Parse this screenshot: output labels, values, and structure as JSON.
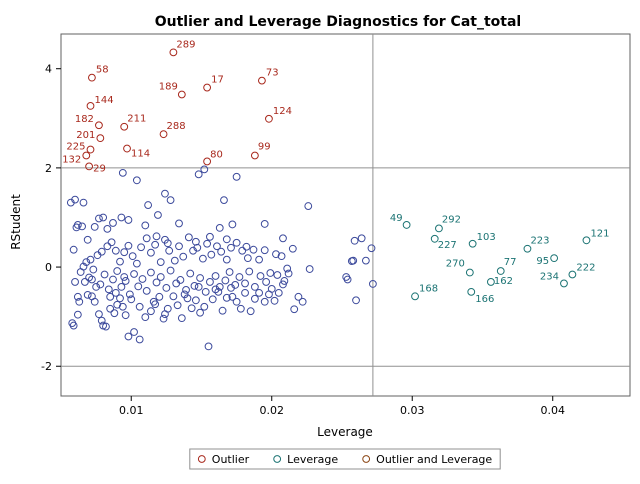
{
  "chart_data": {
    "type": "scatter",
    "title": "Outlier and Leverage Diagnostics for Cat_total",
    "xlabel": "Leverage",
    "ylabel": "RStudent",
    "xlim": [
      0.005,
      0.0455
    ],
    "ylim": [
      -2.6,
      4.7
    ],
    "x_ticks": [
      0.01,
      0.02,
      0.03,
      0.04
    ],
    "x_tick_labels": [
      "0.01",
      "0.02",
      "0.03",
      "0.04"
    ],
    "y_ticks": [
      -2,
      0,
      2,
      4
    ],
    "y_tick_labels": [
      "-2",
      "0",
      "2",
      "4"
    ],
    "reference_lines": {
      "x": 0.0272,
      "y": [
        2,
        -2
      ]
    },
    "colors": {
      "normal": "#3c4a9c",
      "outlier": "#a8281c",
      "leverage": "#1b7373",
      "outlier_and_leverage": "#8b4513",
      "refline": "#909090",
      "frame": "#606060"
    },
    "legend": {
      "position": "bottom",
      "entries": [
        {
          "label": "Outlier",
          "color": "#a8281c"
        },
        {
          "label": "Leverage",
          "color": "#1b7373"
        },
        {
          "label": "Outlier and Leverage",
          "color": "#8b4513"
        }
      ]
    },
    "outliers": [
      {
        "id": "289",
        "x": 0.013,
        "y": 4.33
      },
      {
        "id": "58",
        "x": 0.0072,
        "y": 3.82
      },
      {
        "id": "73",
        "x": 0.0193,
        "y": 3.76
      },
      {
        "id": "17",
        "x": 0.0154,
        "y": 3.62
      },
      {
        "id": "189",
        "x": 0.0136,
        "y": 3.48
      },
      {
        "id": "144",
        "x": 0.0071,
        "y": 3.25
      },
      {
        "id": "124",
        "x": 0.0198,
        "y": 2.99
      },
      {
        "id": "182",
        "x": 0.0077,
        "y": 2.86
      },
      {
        "id": "211",
        "x": 0.0095,
        "y": 2.83
      },
      {
        "id": "288",
        "x": 0.0123,
        "y": 2.68
      },
      {
        "id": "201",
        "x": 0.0078,
        "y": 2.6
      },
      {
        "id": "225",
        "x": 0.0071,
        "y": 2.37
      },
      {
        "id": "114",
        "x": 0.0097,
        "y": 2.39
      },
      {
        "id": "80",
        "x": 0.0154,
        "y": 2.13
      },
      {
        "id": "99",
        "x": 0.0188,
        "y": 2.25
      },
      {
        "id": "132",
        "x": 0.0068,
        "y": 2.25
      },
      {
        "id": "29",
        "x": 0.007,
        "y": 2.03
      }
    ],
    "leverage_points": [
      {
        "id": "49",
        "x": 0.0296,
        "y": 0.85
      },
      {
        "id": "292",
        "x": 0.0319,
        "y": 0.78
      },
      {
        "id": "227",
        "x": 0.0316,
        "y": 0.57
      },
      {
        "id": "103",
        "x": 0.0343,
        "y": 0.47
      },
      {
        "id": "223",
        "x": 0.0382,
        "y": 0.37
      },
      {
        "id": "121",
        "x": 0.0424,
        "y": 0.54
      },
      {
        "id": "270",
        "x": 0.0341,
        "y": -0.11
      },
      {
        "id": "77",
        "x": 0.0363,
        "y": -0.08
      },
      {
        "id": "95",
        "x": 0.0401,
        "y": 0.18
      },
      {
        "id": "222",
        "x": 0.0414,
        "y": -0.15
      },
      {
        "id": "234",
        "x": 0.0408,
        "y": -0.33
      },
      {
        "id": "162",
        "x": 0.0356,
        "y": -0.3
      },
      {
        "id": "168",
        "x": 0.0302,
        "y": -0.59
      },
      {
        "id": "166",
        "x": 0.0342,
        "y": -0.5
      }
    ],
    "normal_points": [
      [
        0.0066,
        1.3
      ],
      [
        0.0069,
        0.55
      ],
      [
        0.0057,
        1.3
      ],
      [
        0.006,
        1.36
      ],
      [
        0.0062,
        0.85
      ],
      [
        0.0059,
        0.35
      ],
      [
        0.0061,
        0.8
      ],
      [
        0.0065,
        0.82
      ],
      [
        0.0074,
        0.81
      ],
      [
        0.0077,
        0.98
      ],
      [
        0.008,
        1.0
      ],
      [
        0.0083,
        0.77
      ],
      [
        0.0087,
        0.89
      ],
      [
        0.0093,
        1.0
      ],
      [
        0.0094,
        1.9
      ],
      [
        0.0104,
        1.75
      ],
      [
        0.0112,
        1.25
      ],
      [
        0.0119,
        1.05
      ],
      [
        0.0124,
        1.48
      ],
      [
        0.0128,
        1.35
      ],
      [
        0.0148,
        1.87
      ],
      [
        0.0152,
        1.97
      ],
      [
        0.0166,
        1.35
      ],
      [
        0.0175,
        1.82
      ],
      [
        0.0163,
        0.79
      ],
      [
        0.0172,
        0.86
      ],
      [
        0.0195,
        0.87
      ],
      [
        0.0208,
        0.58
      ],
      [
        0.0226,
        1.23
      ],
      [
        0.0259,
        0.53
      ],
      [
        0.0264,
        0.58
      ],
      [
        0.0258,
        0.13
      ],
      [
        0.0267,
        0.13
      ],
      [
        0.0271,
        0.38
      ],
      [
        0.0254,
        -0.25
      ],
      [
        0.026,
        -0.67
      ],
      [
        0.0272,
        -0.34
      ],
      [
        0.006,
        -0.3
      ],
      [
        0.0062,
        -0.6
      ],
      [
        0.0063,
        -0.7
      ],
      [
        0.0058,
        -1.13
      ],
      [
        0.0059,
        -1.18
      ],
      [
        0.0066,
        0.01
      ],
      [
        0.0069,
        -0.56
      ],
      [
        0.0072,
        -0.59
      ],
      [
        0.0074,
        -0.7
      ],
      [
        0.0077,
        -0.95
      ],
      [
        0.0079,
        -1.08
      ],
      [
        0.008,
        -1.18
      ],
      [
        0.0082,
        -1.2
      ],
      [
        0.0085,
        -0.84
      ],
      [
        0.0088,
        -0.93
      ],
      [
        0.009,
        -0.76
      ],
      [
        0.0092,
        -0.63
      ],
      [
        0.0094,
        -0.8
      ],
      [
        0.0096,
        -0.97
      ],
      [
        0.0098,
        -1.4
      ],
      [
        0.0102,
        -1.31
      ],
      [
        0.0106,
        -1.46
      ],
      [
        0.011,
        -1.01
      ],
      [
        0.0114,
        -0.89
      ],
      [
        0.0117,
        -0.75
      ],
      [
        0.012,
        -0.6
      ],
      [
        0.0123,
        -1.04
      ],
      [
        0.0126,
        -0.84
      ],
      [
        0.013,
        -0.59
      ],
      [
        0.0133,
        -0.77
      ],
      [
        0.0136,
        -1.03
      ],
      [
        0.014,
        -0.63
      ],
      [
        0.0143,
        -0.83
      ],
      [
        0.0146,
        -0.67
      ],
      [
        0.0149,
        -0.92
      ],
      [
        0.0152,
        -0.8
      ],
      [
        0.0155,
        -1.6
      ],
      [
        0.0158,
        -0.65
      ],
      [
        0.0162,
        -0.5
      ],
      [
        0.0165,
        -0.88
      ],
      [
        0.0168,
        -0.62
      ],
      [
        0.0171,
        -0.42
      ],
      [
        0.0175,
        -0.7
      ],
      [
        0.0178,
        -0.84
      ],
      [
        0.0181,
        -0.52
      ],
      [
        0.0185,
        -0.89
      ],
      [
        0.0188,
        -0.64
      ],
      [
        0.0191,
        -0.52
      ],
      [
        0.0195,
        -0.7
      ],
      [
        0.0198,
        -0.55
      ],
      [
        0.0202,
        -0.68
      ],
      [
        0.0205,
        -0.52
      ],
      [
        0.0209,
        -0.28
      ],
      [
        0.0212,
        -0.13
      ],
      [
        0.0216,
        -0.85
      ],
      [
        0.0219,
        -0.6
      ],
      [
        0.0222,
        -0.7
      ],
      [
        0.0227,
        -0.04
      ],
      [
        0.0253,
        -0.2
      ],
      [
        0.0257,
        0.12
      ],
      [
        0.0062,
        -0.96
      ],
      [
        0.007,
        -0.21
      ],
      [
        0.0073,
        -0.05
      ],
      [
        0.0076,
        0.24
      ],
      [
        0.0079,
        0.31
      ],
      [
        0.0083,
        0.42
      ],
      [
        0.0086,
        0.5
      ],
      [
        0.0089,
        0.33
      ],
      [
        0.0092,
        0.11
      ],
      [
        0.0095,
        0.3
      ],
      [
        0.0098,
        0.43
      ],
      [
        0.0101,
        0.22
      ],
      [
        0.0104,
        0.07
      ],
      [
        0.0107,
        0.4
      ],
      [
        0.0111,
        0.58
      ],
      [
        0.0114,
        0.29
      ],
      [
        0.0117,
        0.45
      ],
      [
        0.0121,
        0.1
      ],
      [
        0.0124,
        0.55
      ],
      [
        0.0127,
        0.33
      ],
      [
        0.0131,
        0.13
      ],
      [
        0.0134,
        0.42
      ],
      [
        0.0137,
        0.21
      ],
      [
        0.0141,
        0.6
      ],
      [
        0.0144,
        0.33
      ],
      [
        0.0147,
        0.39
      ],
      [
        0.0151,
        0.17
      ],
      [
        0.0154,
        0.47
      ],
      [
        0.0157,
        0.25
      ],
      [
        0.0161,
        0.42
      ],
      [
        0.0164,
        0.31
      ],
      [
        0.0168,
        0.15
      ],
      [
        0.0171,
        0.39
      ],
      [
        0.0175,
        0.49
      ],
      [
        0.0179,
        0.33
      ],
      [
        0.0183,
        0.18
      ],
      [
        0.0187,
        0.35
      ],
      [
        0.0191,
        0.15
      ],
      [
        0.0195,
        0.34
      ],
      [
        0.0199,
        -0.12
      ],
      [
        0.0203,
        0.26
      ],
      [
        0.0207,
        0.22
      ],
      [
        0.0211,
        -0.03
      ],
      [
        0.0215,
        0.37
      ],
      [
        0.0071,
        0.15
      ],
      [
        0.0078,
        -0.35
      ],
      [
        0.0081,
        -0.15
      ],
      [
        0.0084,
        -0.45
      ],
      [
        0.0087,
        -0.25
      ],
      [
        0.009,
        -0.08
      ],
      [
        0.0093,
        -0.4
      ],
      [
        0.0096,
        -0.28
      ],
      [
        0.0099,
        -0.55
      ],
      [
        0.0102,
        -0.14
      ],
      [
        0.0105,
        -0.39
      ],
      [
        0.0108,
        -0.24
      ],
      [
        0.0111,
        -0.48
      ],
      [
        0.0114,
        -0.11
      ],
      [
        0.0118,
        -0.31
      ],
      [
        0.0121,
        -0.2
      ],
      [
        0.0125,
        -0.42
      ],
      [
        0.0128,
        -0.07
      ],
      [
        0.0132,
        -0.33
      ],
      [
        0.0135,
        -0.26
      ],
      [
        0.0139,
        -0.46
      ],
      [
        0.0142,
        -0.13
      ],
      [
        0.0145,
        -0.38
      ],
      [
        0.0149,
        -0.22
      ],
      [
        0.0153,
        -0.5
      ],
      [
        0.0156,
        -0.3
      ],
      [
        0.016,
        -0.18
      ],
      [
        0.0163,
        -0.4
      ],
      [
        0.0167,
        -0.27
      ],
      [
        0.017,
        -0.1
      ],
      [
        0.0174,
        -0.36
      ],
      [
        0.0177,
        -0.2
      ],
      [
        0.0181,
        -0.33
      ],
      [
        0.0184,
        -0.09
      ],
      [
        0.0188,
        -0.4
      ],
      [
        0.0192,
        -0.18
      ],
      [
        0.0196,
        -0.3
      ],
      [
        0.02,
        -0.44
      ],
      [
        0.0204,
        -0.16
      ],
      [
        0.0208,
        -0.35
      ],
      [
        0.0098,
        0.95
      ],
      [
        0.011,
        0.84
      ],
      [
        0.0118,
        0.62
      ],
      [
        0.0126,
        0.48
      ],
      [
        0.0134,
        0.88
      ],
      [
        0.0146,
        0.51
      ],
      [
        0.0156,
        0.61
      ],
      [
        0.0168,
        0.56
      ],
      [
        0.0182,
        0.41
      ],
      [
        0.0095,
        -0.2
      ],
      [
        0.01,
        -0.65
      ],
      [
        0.0106,
        -0.8
      ],
      [
        0.0116,
        -0.7
      ],
      [
        0.0124,
        -0.95
      ],
      [
        0.0138,
        -0.55
      ],
      [
        0.0148,
        -0.4
      ],
      [
        0.016,
        -0.45
      ],
      [
        0.0172,
        -0.6
      ],
      [
        0.0085,
        -0.6
      ],
      [
        0.0089,
        -0.52
      ],
      [
        0.0075,
        -0.4
      ],
      [
        0.0067,
        -0.3
      ],
      [
        0.0064,
        -0.1
      ],
      [
        0.0068,
        0.1
      ],
      [
        0.0072,
        -0.25
      ]
    ]
  }
}
